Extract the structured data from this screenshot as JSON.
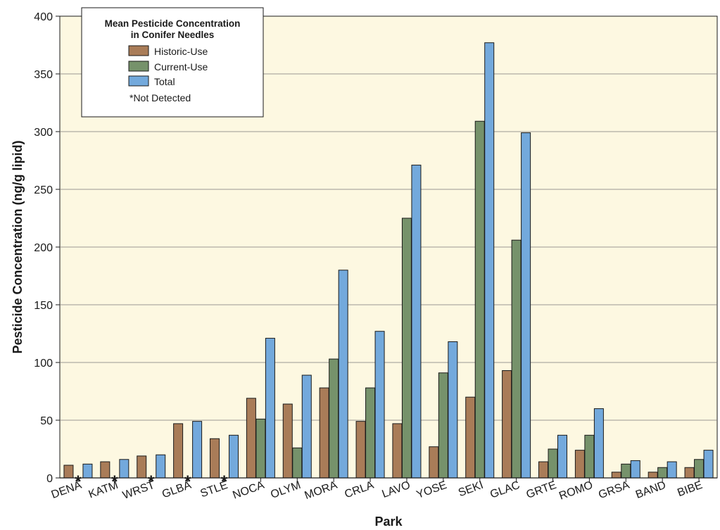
{
  "chart_data": {
    "type": "bar",
    "ylabel": "Pesticide Concentration (ng/g lipid)",
    "xlabel": "Park",
    "ylim": [
      0,
      400
    ],
    "yticks": [
      0,
      50,
      100,
      150,
      200,
      250,
      300,
      350,
      400
    ],
    "grid": true,
    "legend_position": "top-left",
    "categories": [
      "DENA",
      "KATM",
      "WRST",
      "GLBA",
      "STLE",
      "NOCA",
      "OLYM",
      "MORA",
      "CRLA",
      "LAVO",
      "YOSE",
      "SEKI",
      "GLAC",
      "GRTE",
      "ROMO",
      "GRSA",
      "BAND",
      "BIBE"
    ],
    "series": [
      {
        "name": "Historic-Use",
        "color": "#a97c58",
        "values": [
          11,
          14,
          19,
          47,
          34,
          69,
          64,
          78,
          49,
          47,
          27,
          70,
          93,
          14,
          24,
          5,
          5,
          9
        ]
      },
      {
        "name": "Current-Use",
        "color": "#76926b",
        "values": [
          null,
          null,
          null,
          null,
          null,
          51,
          26,
          103,
          78,
          225,
          91,
          309,
          206,
          25,
          37,
          12,
          9,
          16
        ]
      },
      {
        "name": "Total",
        "color": "#73a9dc",
        "values": [
          12,
          16,
          20,
          49,
          37,
          121,
          89,
          180,
          127,
          271,
          118,
          377,
          299,
          37,
          60,
          15,
          14,
          24
        ]
      }
    ],
    "not_detected_marker": "*",
    "legend": {
      "title_line1": "Mean Pesticide Concentration",
      "title_line2": "in Conifer Needles",
      "note": "*Not Detected"
    },
    "colors": {
      "plot_background": "#fdf8e1",
      "gridline": "#7a7a7a",
      "bar_outline": "#1a1a1a"
    }
  }
}
